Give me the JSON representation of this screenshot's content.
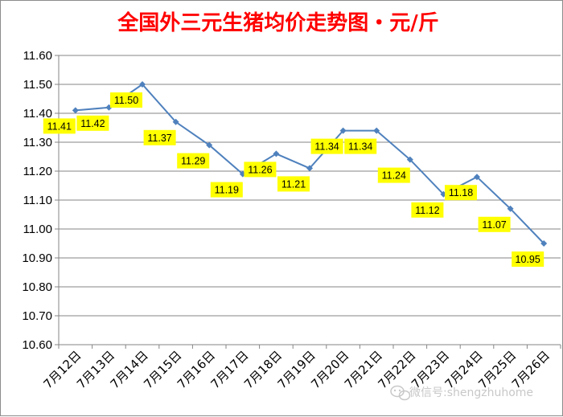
{
  "colors": {
    "title": "#ff0000",
    "line": "#4f81bd",
    "marker": "#4f81bd",
    "label_bg": "#ffff00",
    "grid": "#868686",
    "axis": "#868686"
  },
  "watermark": {
    "text": "微信号:shengzhuhome",
    "icon": "wechat-icon"
  },
  "chart_data": {
    "type": "line",
    "title": "全国外三元生猪均价走势图・元/斤",
    "xlabel": "",
    "ylabel": "",
    "ylim": [
      10.6,
      11.6
    ],
    "ytick_step": 0.1,
    "grid": true,
    "legend": "none",
    "categories": [
      "7月12日",
      "7月13日",
      "7月14日",
      "7月15日",
      "7月16日",
      "7月17日",
      "7月18日",
      "7月19日",
      "7月20日",
      "7月21日",
      "7月22日",
      "7月23日",
      "7月24日",
      "7月25日",
      "7月26日"
    ],
    "series": [
      {
        "values": [
          11.41,
          11.42,
          11.5,
          11.37,
          11.29,
          11.19,
          11.26,
          11.21,
          11.34,
          11.34,
          11.24,
          11.12,
          11.18,
          11.07,
          10.95
        ],
        "data_labels": [
          "11.41",
          "11.42",
          "11.50",
          "11.37",
          "11.29",
          "11.19",
          "11.26",
          "11.21",
          "11.34",
          "11.34",
          "11.24",
          "11.12",
          "11.18",
          "11.07",
          "10.95"
        ]
      }
    ]
  }
}
